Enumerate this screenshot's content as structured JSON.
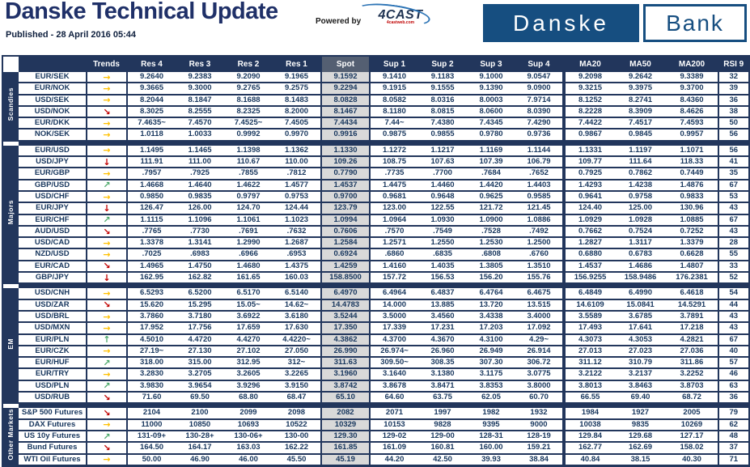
{
  "header": {
    "title": "Danske Technical Update",
    "published": "Published - 28 April 2016 05:44",
    "powered_by": "Powered by",
    "cast_logo": "4CAST",
    "cast_logo_sub": "4castweb.com",
    "bank_logo_left": "Danske",
    "bank_logo_right": "Bank"
  },
  "colors": {
    "navy": "#22365C",
    "title_navy": "#1F3068",
    "logo_blue": "#164E80",
    "spot_gray": "#D9D9D9",
    "arrow_gold": "#FFC000",
    "arrow_red": "#C00000",
    "arrow_green": "#4EA96B"
  },
  "trend_arrows": {
    "right": {
      "glyph": "→",
      "color": "#FFC000"
    },
    "up": {
      "glyph": "↑",
      "color": "#4EA96B"
    },
    "down": {
      "glyph": "↓",
      "color": "#C00000"
    },
    "upright": {
      "glyph": "↗",
      "color": "#4EA96B"
    },
    "downright": {
      "glyph": "↘",
      "color": "#C00000"
    }
  },
  "table": {
    "columns": [
      "Trends",
      "Res 4",
      "Res 3",
      "Res 2",
      "Res 1",
      "Spot",
      "Sup 1",
      "Sup 2",
      "Sup 3",
      "Sup 4",
      "MA20",
      "MA50",
      "MA200",
      "RSI 9"
    ],
    "sections": [
      {
        "label": "Scandies",
        "rows": [
          {
            "pair": "EUR/SEK",
            "trend": "right",
            "values": [
              "9.2640",
              "9.2383",
              "9.2090",
              "9.1965",
              "9.1592",
              "9.1410",
              "9.1183",
              "9.1000",
              "9.0547",
              "9.2098",
              "9.2642",
              "9.3389",
              "32"
            ]
          },
          {
            "pair": "EUR/NOK",
            "trend": "right",
            "values": [
              "9.3665",
              "9.3000",
              "9.2765",
              "9.2575",
              "9.2294",
              "9.1915",
              "9.1555",
              "9.1390",
              "9.0900",
              "9.3215",
              "9.3975",
              "9.3700",
              "39"
            ]
          },
          {
            "pair": "USD/SEK",
            "trend": "right",
            "values": [
              "8.2044",
              "8.1847",
              "8.1688",
              "8.1483",
              "8.0828",
              "8.0582",
              "8.0316",
              "8.0003",
              "7.9714",
              "8.1252",
              "8.2741",
              "8.4360",
              "36"
            ]
          },
          {
            "pair": "USD/NOK",
            "trend": "downright",
            "values": [
              "8.3025",
              "8.2555",
              "8.2325",
              "8.2000",
              "8.1467",
              "8.1180",
              "8.0815",
              "8.0600",
              "8.0390",
              "8.2228",
              "8.3909",
              "8.4626",
              "38"
            ]
          },
          {
            "pair": "EUR/DKK",
            "trend": "right",
            "values": [
              "7.4635~",
              "7.4570",
              "7.4525~",
              "7.4505",
              "7.4434",
              "7.44~",
              "7.4380",
              "7.4345",
              "7.4290",
              "7.4422",
              "7.4517",
              "7.4593",
              "50"
            ]
          },
          {
            "pair": "NOK/SEK",
            "trend": "right",
            "values": [
              "1.0118",
              "1.0033",
              "0.9992",
              "0.9970",
              "0.9916",
              "0.9875",
              "0.9855",
              "0.9780",
              "0.9736",
              "0.9867",
              "0.9845",
              "0.9957",
              "56"
            ]
          }
        ]
      },
      {
        "label": "Majors",
        "rows": [
          {
            "pair": "EUR/USD",
            "trend": "right",
            "values": [
              "1.1495",
              "1.1465",
              "1.1398",
              "1.1362",
              "1.1330",
              "1.1272",
              "1.1217",
              "1.1169",
              "1.1144",
              "1.1331",
              "1.1197",
              "1.1071",
              "56"
            ]
          },
          {
            "pair": "USD/JPY",
            "trend": "down",
            "values": [
              "111.91",
              "111.00",
              "110.67",
              "110.00",
              "109.26",
              "108.75",
              "107.63",
              "107.39",
              "106.79",
              "109.77",
              "111.64",
              "118.33",
              "41"
            ]
          },
          {
            "pair": "EUR/GBP",
            "trend": "right",
            "values": [
              ".7957",
              ".7925",
              ".7855",
              ".7812",
              "0.7790",
              ".7735",
              ".7700",
              ".7684",
              ".7652",
              "0.7925",
              "0.7862",
              "0.7449",
              "35"
            ]
          },
          {
            "pair": "GBP/USD",
            "trend": "upright",
            "values": [
              "1.4668",
              "1.4640",
              "1.4622",
              "1.4577",
              "1.4537",
              "1.4475",
              "1.4460",
              "1.4420",
              "1.4403",
              "1.4293",
              "1.4238",
              "1.4876",
              "67"
            ]
          },
          {
            "pair": "USD/CHF",
            "trend": "right",
            "values": [
              "0.9850",
              "0.9835",
              "0.9797",
              "0.9753",
              "0.9700",
              "0.9681",
              "0.9648",
              "0.9625",
              "0.9585",
              "0.9641",
              "0.9758",
              "0.9833",
              "53"
            ]
          },
          {
            "pair": "EUR/JPY",
            "trend": "down",
            "values": [
              "126.47",
              "126.00",
              "124.70",
              "124.44",
              "123.79",
              "123.00",
              "122.55",
              "121.72",
              "121.45",
              "124.40",
              "125.00",
              "130.96",
              "43"
            ]
          },
          {
            "pair": "EUR/CHF",
            "trend": "upright",
            "values": [
              "1.1115",
              "1.1096",
              "1.1061",
              "1.1023",
              "1.0994",
              "1.0964",
              "1.0930",
              "1.0900",
              "1.0886",
              "1.0929",
              "1.0928",
              "1.0885",
              "67"
            ]
          },
          {
            "pair": "AUD/USD",
            "trend": "downright",
            "values": [
              ".7765",
              ".7730",
              ".7691",
              ".7632",
              "0.7606",
              ".7570",
              ".7549",
              ".7528",
              ".7492",
              "0.7662",
              "0.7524",
              "0.7252",
              "43"
            ]
          },
          {
            "pair": "USD/CAD",
            "trend": "right",
            "values": [
              "1.3378",
              "1.3141",
              "1.2990",
              "1.2687",
              "1.2584",
              "1.2571",
              "1.2550",
              "1.2530",
              "1.2500",
              "1.2827",
              "1.3117",
              "1.3379",
              "28"
            ]
          },
          {
            "pair": "NZD/USD",
            "trend": "right",
            "values": [
              ".7025",
              ".6983",
              ".6966",
              ".6953",
              "0.6924",
              ".6860",
              ".6835",
              ".6808",
              ".6760",
              "0.6880",
              "0.6783",
              "0.6628",
              "55"
            ]
          },
          {
            "pair": "EUR/CAD",
            "trend": "downright",
            "values": [
              "1.4965",
              "1.4750",
              "1.4680",
              "1.4375",
              "1.4259",
              "1.4160",
              "1.4035",
              "1.3805",
              "1.3510",
              "1.4537",
              "1.4686",
              "1.4807",
              "33"
            ]
          },
          {
            "pair": "GBP/JPY",
            "trend": "down",
            "values": [
              "162.95",
              "162.82",
              "161.65",
              "160.03",
              "158.8500",
              "157.72",
              "156.53",
              "156.20",
              "155.76",
              "156.9255",
              "158.9486",
              "176.2381",
              "52"
            ]
          }
        ]
      },
      {
        "label": "EM",
        "rows": [
          {
            "pair": "USD/CNH",
            "trend": "right",
            "values": [
              "6.5293",
              "6.5200",
              "6.5170",
              "6.5140",
              "6.4970",
              "6.4964",
              "6.4837",
              "6.4764",
              "6.4675",
              "6.4849",
              "6.4990",
              "6.4618",
              "54"
            ]
          },
          {
            "pair": "USD/ZAR",
            "trend": "downright",
            "values": [
              "15.620",
              "15.295",
              "15.05~",
              "14.62~",
              "14.4783",
              "14.000",
              "13.885",
              "13.720",
              "13.515",
              "14.6109",
              "15.0841",
              "14.5291",
              "44"
            ]
          },
          {
            "pair": "USD/BRL",
            "trend": "right",
            "values": [
              "3.7860",
              "3.7180",
              "3.6922",
              "3.6180",
              "3.5244",
              "3.5000",
              "3.4560",
              "3.4338",
              "3.4000",
              "3.5589",
              "3.6785",
              "3.7891",
              "43"
            ]
          },
          {
            "pair": "USD/MXN",
            "trend": "right",
            "values": [
              "17.952",
              "17.756",
              "17.659",
              "17.630",
              "17.350",
              "17.339",
              "17.231",
              "17.203",
              "17.092",
              "17.493",
              "17.641",
              "17.218",
              "43"
            ]
          },
          {
            "pair": "EUR/PLN",
            "trend": "up",
            "values": [
              "4.5010",
              "4.4720",
              "4.4270",
              "4.4220~",
              "4.3862",
              "4.3700",
              "4.3670",
              "4.3100",
              "4.29~",
              "4.3073",
              "4.3053",
              "4.2821",
              "67"
            ]
          },
          {
            "pair": "EUR/CZK",
            "trend": "right",
            "values": [
              "27.19~",
              "27.130",
              "27.102",
              "27.050",
              "26.990",
              "26.974~",
              "26.960",
              "26.949",
              "26.914",
              "27.013",
              "27.023",
              "27.036",
              "40"
            ]
          },
          {
            "pair": "EUR/HUF",
            "trend": "upright",
            "values": [
              "318.00",
              "315.00",
              "312.95",
              "312~",
              "311.63",
              "309.50~",
              "308.35",
              "307.30",
              "306.72",
              "311.12",
              "310.79",
              "311.86",
              "57"
            ]
          },
          {
            "pair": "EUR/TRY",
            "trend": "right",
            "values": [
              "3.2830",
              "3.2705",
              "3.2605",
              "3.2265",
              "3.1960",
              "3.1640",
              "3.1380",
              "3.1175",
              "3.0775",
              "3.2122",
              "3.2137",
              "3.2252",
              "46"
            ]
          },
          {
            "pair": "USD/PLN",
            "trend": "upright",
            "values": [
              "3.9830",
              "3.9654",
              "3.9296",
              "3.9150",
              "3.8742",
              "3.8678",
              "3.8471",
              "3.8353",
              "3.8000",
              "3.8013",
              "3.8463",
              "3.8703",
              "63"
            ]
          },
          {
            "pair": "USD/RUB",
            "trend": "downright",
            "values": [
              "71.60",
              "69.50",
              "68.80",
              "68.47",
              "65.10",
              "64.60",
              "63.75",
              "62.05",
              "60.70",
              "66.55",
              "69.40",
              "68.72",
              "36"
            ]
          }
        ]
      },
      {
        "label": "Other Markets",
        "rows": [
          {
            "pair": "S&P 500 Futures",
            "trend": "downright",
            "values": [
              "2104",
              "2100",
              "2099",
              "2098",
              "2082",
              "2071",
              "1997",
              "1982",
              "1932",
              "1984",
              "1927",
              "2005",
              "79"
            ]
          },
          {
            "pair": "DAX Futures",
            "trend": "right",
            "values": [
              "11000",
              "10850",
              "10693",
              "10522",
              "10329",
              "10153",
              "9828",
              "9395",
              "9000",
              "10038",
              "9835",
              "10269",
              "62"
            ]
          },
          {
            "pair": "US 10y Futures",
            "trend": "upright",
            "values": [
              "131-09+",
              "130-28+",
              "130-06+",
              "130-00",
              "129.30",
              "129-02",
              "129-00",
              "128-31",
              "128-19",
              "129.84",
              "129.68",
              "127.17",
              "48"
            ]
          },
          {
            "pair": "Bund Futures",
            "trend": "downright",
            "values": [
              "164.50",
              "164.17",
              "163.03",
              "162.22",
              "161.85",
              "161.09",
              "160.81",
              "160.00",
              "159.21",
              "162.77",
              "162.69",
              "158.02",
              "37"
            ]
          },
          {
            "pair": "WTI Oil Futures",
            "trend": "right",
            "values": [
              "50.00",
              "46.90",
              "46.00",
              "45.50",
              "45.19",
              "44.20",
              "42.50",
              "39.93",
              "38.84",
              "40.84",
              "38.15",
              "40.30",
              "71"
            ]
          }
        ]
      }
    ]
  }
}
